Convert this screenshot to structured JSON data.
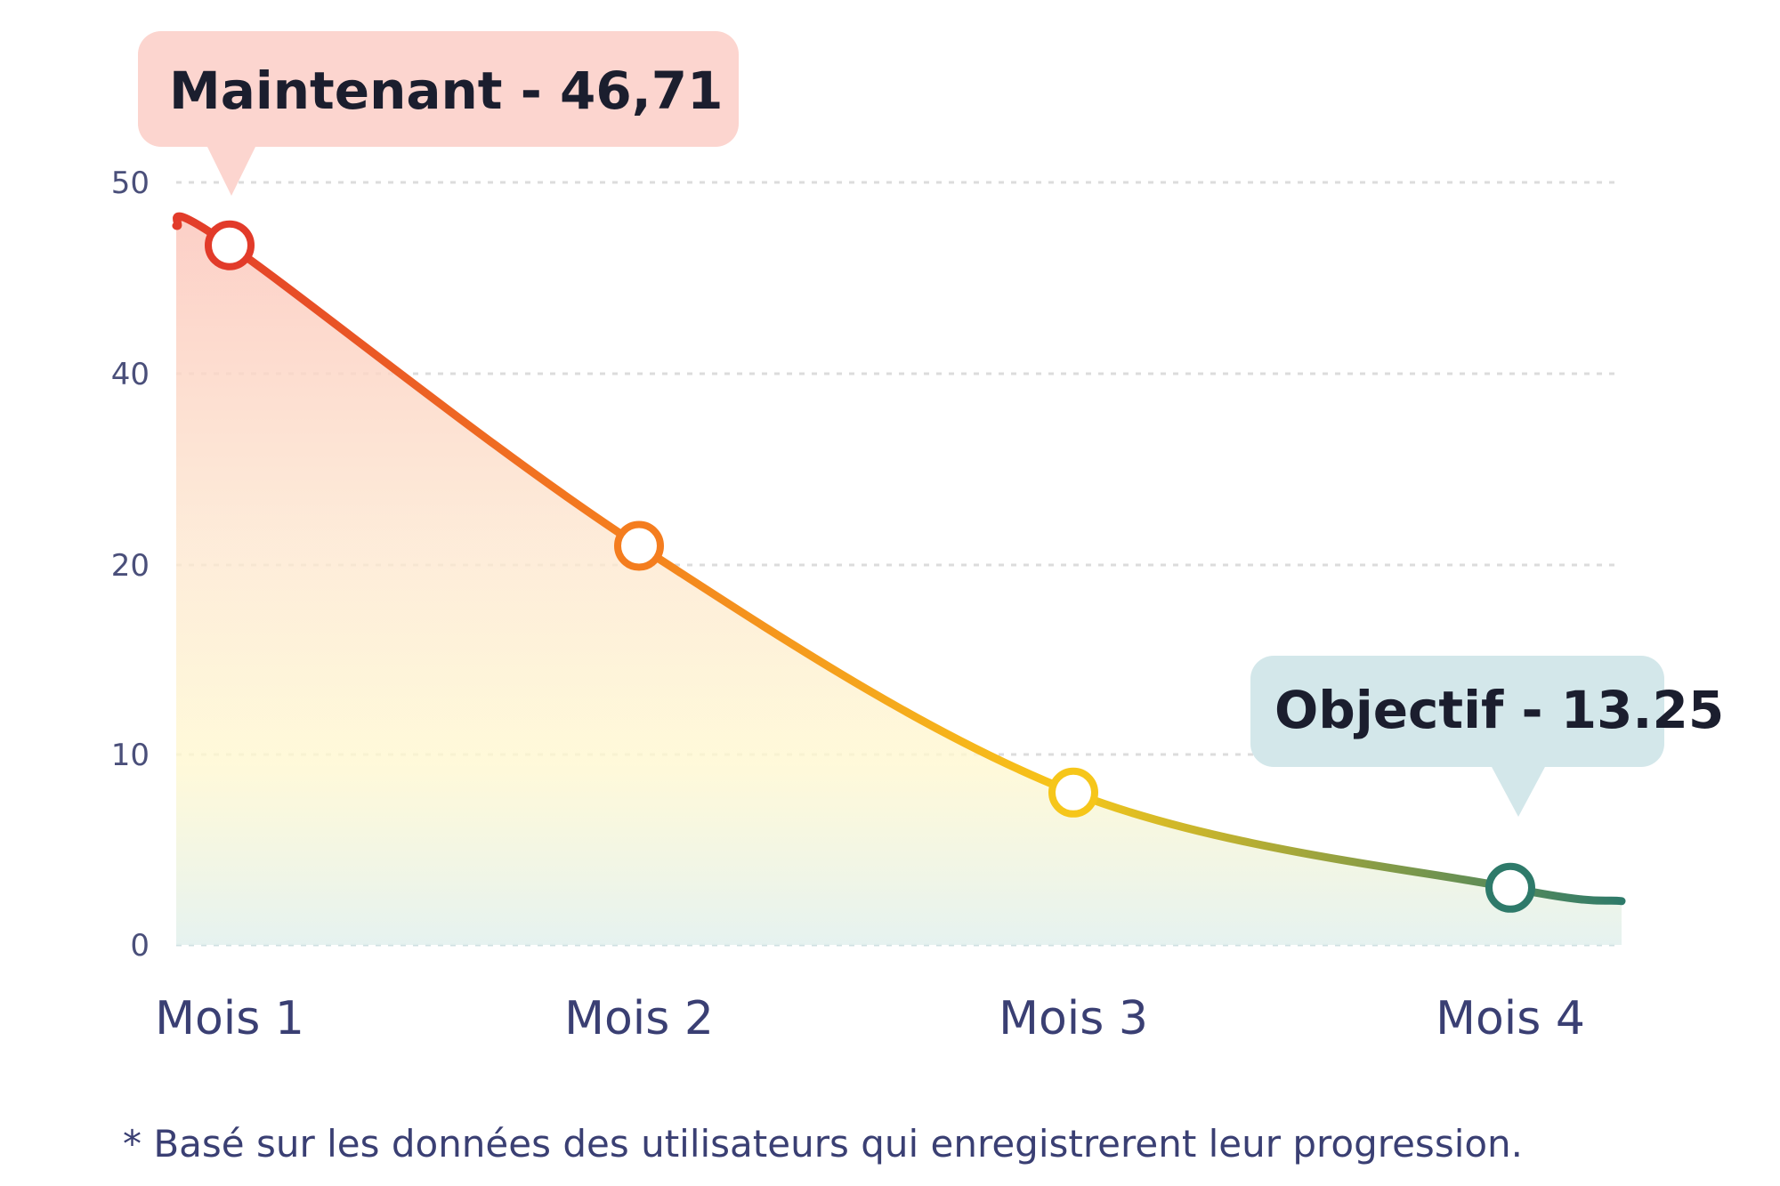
{
  "chart_data": {
    "type": "line",
    "categories": [
      "Mois 1",
      "Mois 2",
      "Mois 3",
      "Mois 4"
    ],
    "values": [
      46.71,
      22,
      8,
      3
    ],
    "ylim": [
      0,
      50
    ],
    "yticks": [
      0,
      10,
      20,
      40,
      50
    ],
    "grid": true,
    "colors": {
      "start": "#e23b2a",
      "mid1": "#f47d1f",
      "mid2": "#f6c61a",
      "end": "#2e7a6a"
    }
  },
  "callouts": {
    "current": {
      "label": "Maintenant - 46,71",
      "bg": "#fcd5cf"
    },
    "goal": {
      "label": "Objectif - 13.25",
      "bg": "#d3e7ea"
    }
  },
  "footnote": "* Basé sur les données des utilisateurs qui enregistrerent leur progression."
}
